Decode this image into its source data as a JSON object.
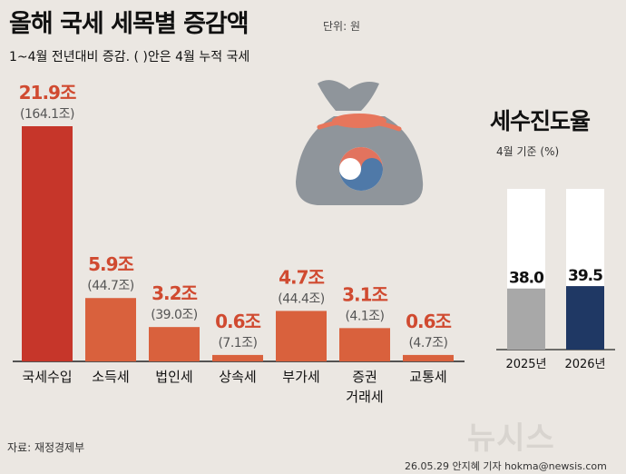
{
  "header": {
    "title": "올해 국세 세목별 증감액",
    "unit": "단위: 원",
    "subtitle": "1~4월 전년대비 증감. ( )안은 4월 누적 국세"
  },
  "colors": {
    "bar_main": "#c6362a",
    "bar_other": "#d9613d",
    "value_text": "#d04a30",
    "cumulative_text": "#555555",
    "rate_2025": "#a8a8a8",
    "rate_2026": "#1f3864",
    "rate_background": "#ffffff"
  },
  "chart_data": [
    {
      "type": "bar",
      "categories": [
        "국세수입",
        "소득세",
        "법인세",
        "상속세",
        "부가세",
        "증권\n거래세",
        "교통세"
      ],
      "series": [
        {
          "values": [
            21.9,
            5.9,
            3.2,
            0.6,
            4.7,
            3.1,
            0.6
          ]
        }
      ],
      "value_labels": [
        "21.9조",
        "5.9조",
        "3.2조",
        "0.6조",
        "4.7조",
        "3.1조",
        "0.6조"
      ],
      "cumulative_labels": [
        "(164.1조)",
        "(44.7조)",
        "(39.0조)",
        "(7.1조)",
        "(44.4조)",
        "(4.1조)",
        "(4.7조)"
      ],
      "ylim": [
        0,
        21.9
      ]
    },
    {
      "type": "bar",
      "title": "세수진도율",
      "subtitle": "4월 기준 (%)",
      "categories": [
        "2025년",
        "2026년"
      ],
      "values": [
        38.0,
        39.5
      ],
      "value_labels": [
        "38.0",
        "39.5"
      ],
      "ylim": [
        0,
        100
      ]
    }
  ],
  "footer": {
    "source": "자료: 재정경제부",
    "credit": "26.05.29 안지혜 기자 hokma@newsis.com",
    "watermark": "뉴시스"
  }
}
